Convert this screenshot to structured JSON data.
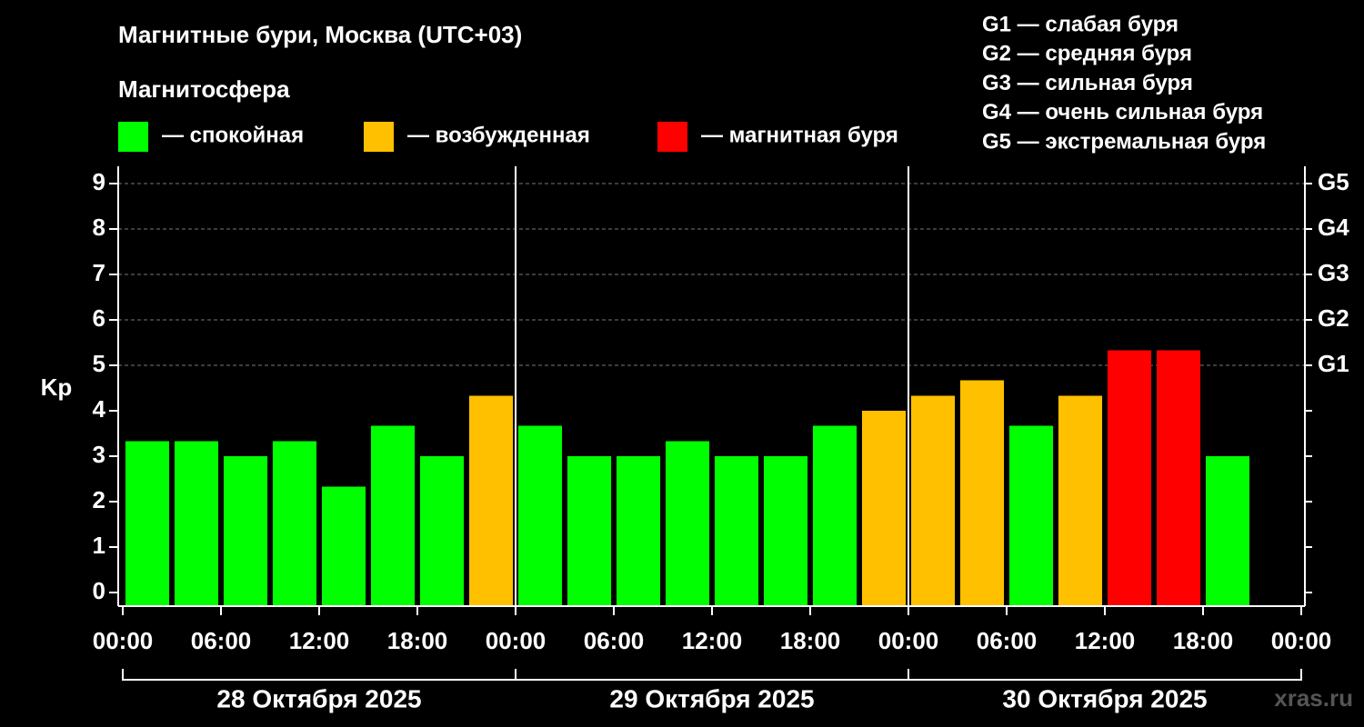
{
  "chart_data": {
    "type": "bar",
    "title": "Магнитные бури, Москва (UTC+03)",
    "legend_title": "Магнитосфера",
    "legend": [
      {
        "label": "— спокойная",
        "color": "#00ff00"
      },
      {
        "label": "— возбужденная",
        "color": "#ffc000"
      },
      {
        "label": "— магнитная буря",
        "color": "#ff0000"
      }
    ],
    "scale_legend": [
      "G1 — слабая буря",
      "G2 — средняя буря",
      "G3 — сильная буря",
      "G4 — очень сильная буря",
      "G5 — экстремальная буря"
    ],
    "y_label": "Kp",
    "watermark": "xras.ru",
    "x": [
      1.5,
      4.5,
      7.5,
      10.5,
      13.5,
      16.5,
      19.5,
      22.5,
      25.5,
      28.5,
      31.5,
      34.5,
      37.5,
      40.5,
      43.5,
      46.5,
      49.5,
      52.5,
      55.5,
      58.5,
      61.5,
      64.5,
      67.5,
      70.5
    ],
    "values": [
      3.33,
      3.33,
      3.0,
      3.33,
      2.33,
      3.67,
      3.0,
      4.33,
      3.67,
      3.0,
      3.0,
      3.33,
      3.0,
      3.0,
      3.67,
      4.0,
      4.33,
      4.67,
      3.67,
      4.33,
      5.33,
      5.33,
      3.0,
      null
    ],
    "colors": [
      "#00ff00",
      "#00ff00",
      "#00ff00",
      "#00ff00",
      "#00ff00",
      "#00ff00",
      "#00ff00",
      "#ffc000",
      "#00ff00",
      "#00ff00",
      "#00ff00",
      "#00ff00",
      "#00ff00",
      "#00ff00",
      "#00ff00",
      "#ffc000",
      "#ffc000",
      "#ffc000",
      "#00ff00",
      "#ffc000",
      "#ff0000",
      "#ff0000",
      "#00ff00",
      null
    ],
    "xlim": [
      0,
      72
    ],
    "xticks": [
      {
        "value": 0,
        "label": "00:00"
      },
      {
        "value": 6,
        "label": "06:00"
      },
      {
        "value": 12,
        "label": "12:00"
      },
      {
        "value": 18,
        "label": "18:00"
      },
      {
        "value": 24,
        "label": "00:00"
      },
      {
        "value": 30,
        "label": "06:00"
      },
      {
        "value": 36,
        "label": "12:00"
      },
      {
        "value": 42,
        "label": "18:00"
      },
      {
        "value": 48,
        "label": "00:00"
      },
      {
        "value": 54,
        "label": "06:00"
      },
      {
        "value": 60,
        "label": "12:00"
      },
      {
        "value": 66,
        "label": "18:00"
      },
      {
        "value": 72,
        "label": "00:00"
      }
    ],
    "xgroups": [
      {
        "label": "28 Октября 2025",
        "range": [
          0,
          24
        ]
      },
      {
        "label": "29 Октября 2025",
        "range": [
          24,
          48
        ]
      },
      {
        "label": "30 Октября 2025",
        "range": [
          48,
          72
        ]
      }
    ],
    "ylim": [
      -0.3,
      9.38
    ],
    "yticks": [
      0,
      1,
      2,
      3,
      4,
      5,
      6,
      7,
      8,
      9
    ],
    "y2ticks": [
      {
        "value": 5,
        "label": "G1"
      },
      {
        "value": 6,
        "label": "G2"
      },
      {
        "value": 7,
        "label": "G3"
      },
      {
        "value": 8,
        "label": "G4"
      },
      {
        "value": 9,
        "label": "G5"
      }
    ],
    "grid": "y2"
  }
}
